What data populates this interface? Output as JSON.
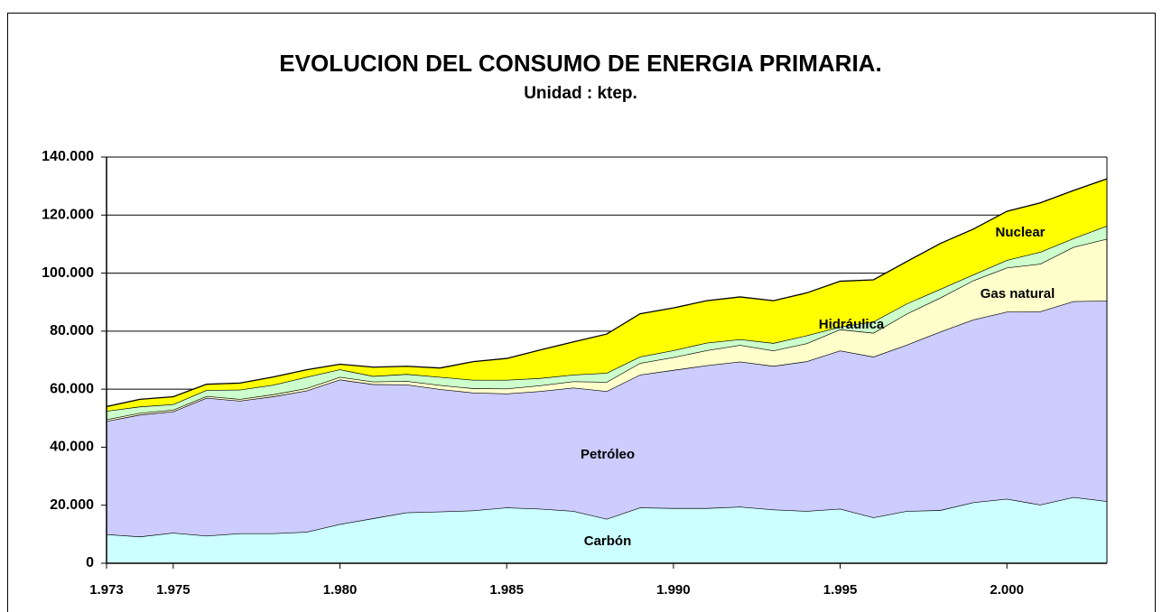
{
  "chart_data": {
    "type": "stacked-area",
    "title": "EVOLUCION DEL CONSUMO DE ENERGIA PRIMARIA.",
    "subtitle": "Unidad : ktep.",
    "x": [
      1973,
      1974,
      1975,
      1976,
      1977,
      1978,
      1979,
      1980,
      1981,
      1982,
      1983,
      1984,
      1985,
      1986,
      1987,
      1988,
      1989,
      1990,
      1991,
      1992,
      1993,
      1994,
      1995,
      1996,
      1997,
      1998,
      1999,
      2000,
      2001,
      2002,
      2003
    ],
    "xlim": [
      1973,
      2003
    ],
    "xticks": [
      {
        "value": 1973,
        "label": "1.973"
      },
      {
        "value": 1975,
        "label": "1.975"
      },
      {
        "value": 1980,
        "label": "1.980"
      },
      {
        "value": 1985,
        "label": "1.985"
      },
      {
        "value": 1990,
        "label": "1.990"
      },
      {
        "value": 1995,
        "label": "1.995"
      },
      {
        "value": 2000,
        "label": "2.000"
      }
    ],
    "ylim": [
      0,
      140000
    ],
    "yticks": [
      0,
      {
        "value": 20000,
        "label": "20.000"
      },
      {
        "value": 40000,
        "label": "40.000"
      },
      {
        "value": 60000,
        "label": "60.000"
      },
      {
        "value": 80000,
        "label": "80.000"
      },
      {
        "value": 100000,
        "label": "100.000"
      },
      {
        "value": 120000,
        "label": "120.000"
      },
      {
        "value": 140000,
        "label": "140.000"
      }
    ],
    "grid": true,
    "series": [
      {
        "name": "Carbón",
        "color": "#ccffff",
        "values": [
          10000,
          9200,
          10500,
          9500,
          10300,
          10300,
          10800,
          13500,
          15500,
          17500,
          17800,
          18200,
          19200,
          18800,
          18000,
          15300,
          19200,
          19000,
          19000,
          19500,
          18500,
          18000,
          18800,
          15800,
          18000,
          18300,
          21000,
          22200,
          20200,
          22800,
          21400
        ]
      },
      {
        "name": "Petróleo",
        "color": "#ccccff",
        "values": [
          39000,
          42000,
          41800,
          47500,
          45700,
          47200,
          48700,
          49800,
          46200,
          44100,
          42200,
          40600,
          39300,
          40500,
          42500,
          44000,
          45800,
          47600,
          49200,
          50000,
          49500,
          51600,
          54500,
          55400,
          57300,
          61500,
          63000,
          64500,
          66600,
          67500,
          69100
        ]
      },
      {
        "name": "Gas natural",
        "color": "#ffffcc",
        "values": [
          600,
          600,
          600,
          600,
          600,
          700,
          800,
          900,
          900,
          1200,
          1400,
          1500,
          1700,
          2000,
          2200,
          3200,
          4000,
          4400,
          5200,
          5700,
          5300,
          6200,
          7300,
          8200,
          10700,
          11700,
          13500,
          15200,
          16400,
          18700,
          21300
        ]
      },
      {
        "name": "Hidráulica",
        "color": "#ccffcc",
        "values": [
          2900,
          2200,
          1900,
          2100,
          3200,
          3300,
          3900,
          2600,
          1900,
          2400,
          2800,
          2900,
          3000,
          2500,
          2300,
          3100,
          2200,
          2400,
          2600,
          2000,
          2600,
          2700,
          900,
          3900,
          3500,
          3000,
          2000,
          2600,
          4100,
          3000,
          4500
        ]
      },
      {
        "name": "Nuclear",
        "color": "#ffff00",
        "values": [
          1500,
          2500,
          2600,
          2000,
          2300,
          2700,
          2500,
          1800,
          3100,
          2700,
          3100,
          6300,
          7400,
          9700,
          11300,
          13400,
          14800,
          14600,
          14500,
          14600,
          14600,
          14700,
          15700,
          14400,
          14500,
          15700,
          15700,
          16800,
          16900,
          16500,
          16200
        ]
      }
    ]
  }
}
